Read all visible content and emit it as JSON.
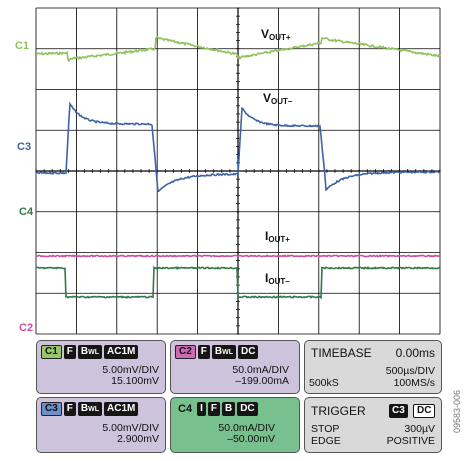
{
  "waveform_labels": {
    "vout_plus": {
      "main": "V",
      "sub": "OUT+"
    },
    "vout_minus": {
      "main": "V",
      "sub": "OUT–"
    },
    "iout_plus": {
      "main": "I",
      "sub": "OUT+"
    },
    "iout_minus": {
      "main": "I",
      "sub": "OUT–"
    }
  },
  "channel_markers": {
    "c1": "C1",
    "c3": "C3",
    "c4": "C4",
    "c2": "C2"
  },
  "colors": {
    "c1": "#8dc35a",
    "c2": "#c94fa8",
    "c3": "#3e63a4",
    "c4": "#2f7a45",
    "grid": "#000000"
  },
  "panels": {
    "ch1": {
      "tag": "C1",
      "f": "F",
      "bw_main": "B",
      "bw_sub": "WL",
      "coupling": "AC1M",
      "line1": "5.00mV/DIV",
      "line2": "15.100mV",
      "bg": "#cdc3dd",
      "tag_bg": "#97c76a"
    },
    "ch2": {
      "tag": "C2",
      "f": "F",
      "bw_main": "B",
      "bw_sub": "WL",
      "coupling": "DC",
      "line1": "50.0mA/DIV",
      "line2": "–199.00mA",
      "bg": "#cdc3dd",
      "tag_bg": "#cc6ab4"
    },
    "ch3": {
      "tag": "C3",
      "f": "F",
      "bw_main": "B",
      "bw_sub": "WL",
      "coupling": "AC1M",
      "line1": "5.00mV/DIV",
      "line2": "2.900mV",
      "bg": "#cdc3dd",
      "tag_bg": "#6f8fc9"
    },
    "ch4": {
      "tag": "C4",
      "i": "I",
      "f": "F",
      "b": "B",
      "coupling": "DC",
      "line1": "50.0mA/DIV",
      "line2": "–50.00mV",
      "bg": "#78c08e",
      "tag_bg": "#78c08e"
    },
    "timebase": {
      "title": "TIMEBASE",
      "value": "0.00ms",
      "line1": "500µs/DIV",
      "left2": "500kS",
      "right2": "100MS/s",
      "bg": "#d9d9d9"
    },
    "trigger": {
      "title": "TRIGGER",
      "ch": "C3",
      "coupling": "DC",
      "mode": "STOP",
      "level": "300µV",
      "edge": "EDGE",
      "slope": "POSITIVE",
      "bg": "#d9d9d9"
    }
  },
  "watermark": "09583-006"
}
